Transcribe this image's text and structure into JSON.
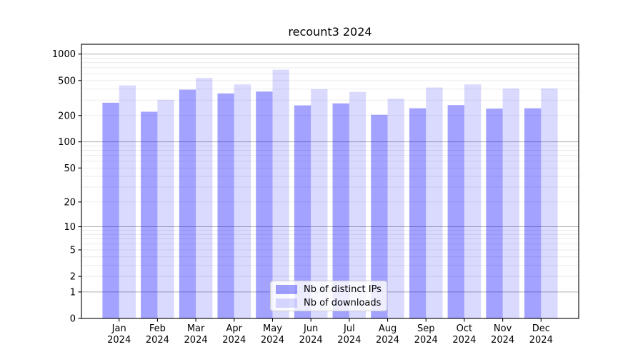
{
  "title": "recount3 2024",
  "legend": {
    "items": [
      {
        "label": "Nb of distinct IPs",
        "color": "rgba(0,0,255,0.36)"
      },
      {
        "label": "Nb of downloads",
        "color": "rgba(0,0,255,0.145)"
      }
    ]
  },
  "colors": {
    "series_ips": "rgba(0,0,255,0.36)",
    "series_downloads": "rgba(0,0,255,0.145)",
    "grid_major": "#b0b0b0",
    "grid_minor": "#e9e9e9",
    "axis": "#000000",
    "background": "#ffffff"
  },
  "chart_data": {
    "type": "bar",
    "title": "recount3 2024",
    "categories": [
      "Jan 2024",
      "Feb 2024",
      "Mar 2024",
      "Apr 2024",
      "May 2024",
      "Jun 2024",
      "Jul 2024",
      "Aug 2024",
      "Sep 2024",
      "Oct 2024",
      "Nov 2024",
      "Dec 2024"
    ],
    "series": [
      {
        "name": "Nb of distinct IPs",
        "values": [
          280,
          221,
          394,
          357,
          375,
          261,
          275,
          204,
          242,
          263,
          240,
          242
        ]
      },
      {
        "name": "Nb of downloads",
        "values": [
          441,
          302,
          535,
          452,
          665,
          399,
          372,
          311,
          417,
          452,
          406,
          407
        ]
      }
    ],
    "xlabel": "",
    "ylabel": "",
    "yscale": "log1p",
    "y_ticks": [
      0,
      1,
      2,
      5,
      10,
      20,
      50,
      100,
      200,
      500,
      1000
    ],
    "ylim": [
      0,
      1300
    ],
    "grid": "both",
    "legend_position": "lower center"
  }
}
